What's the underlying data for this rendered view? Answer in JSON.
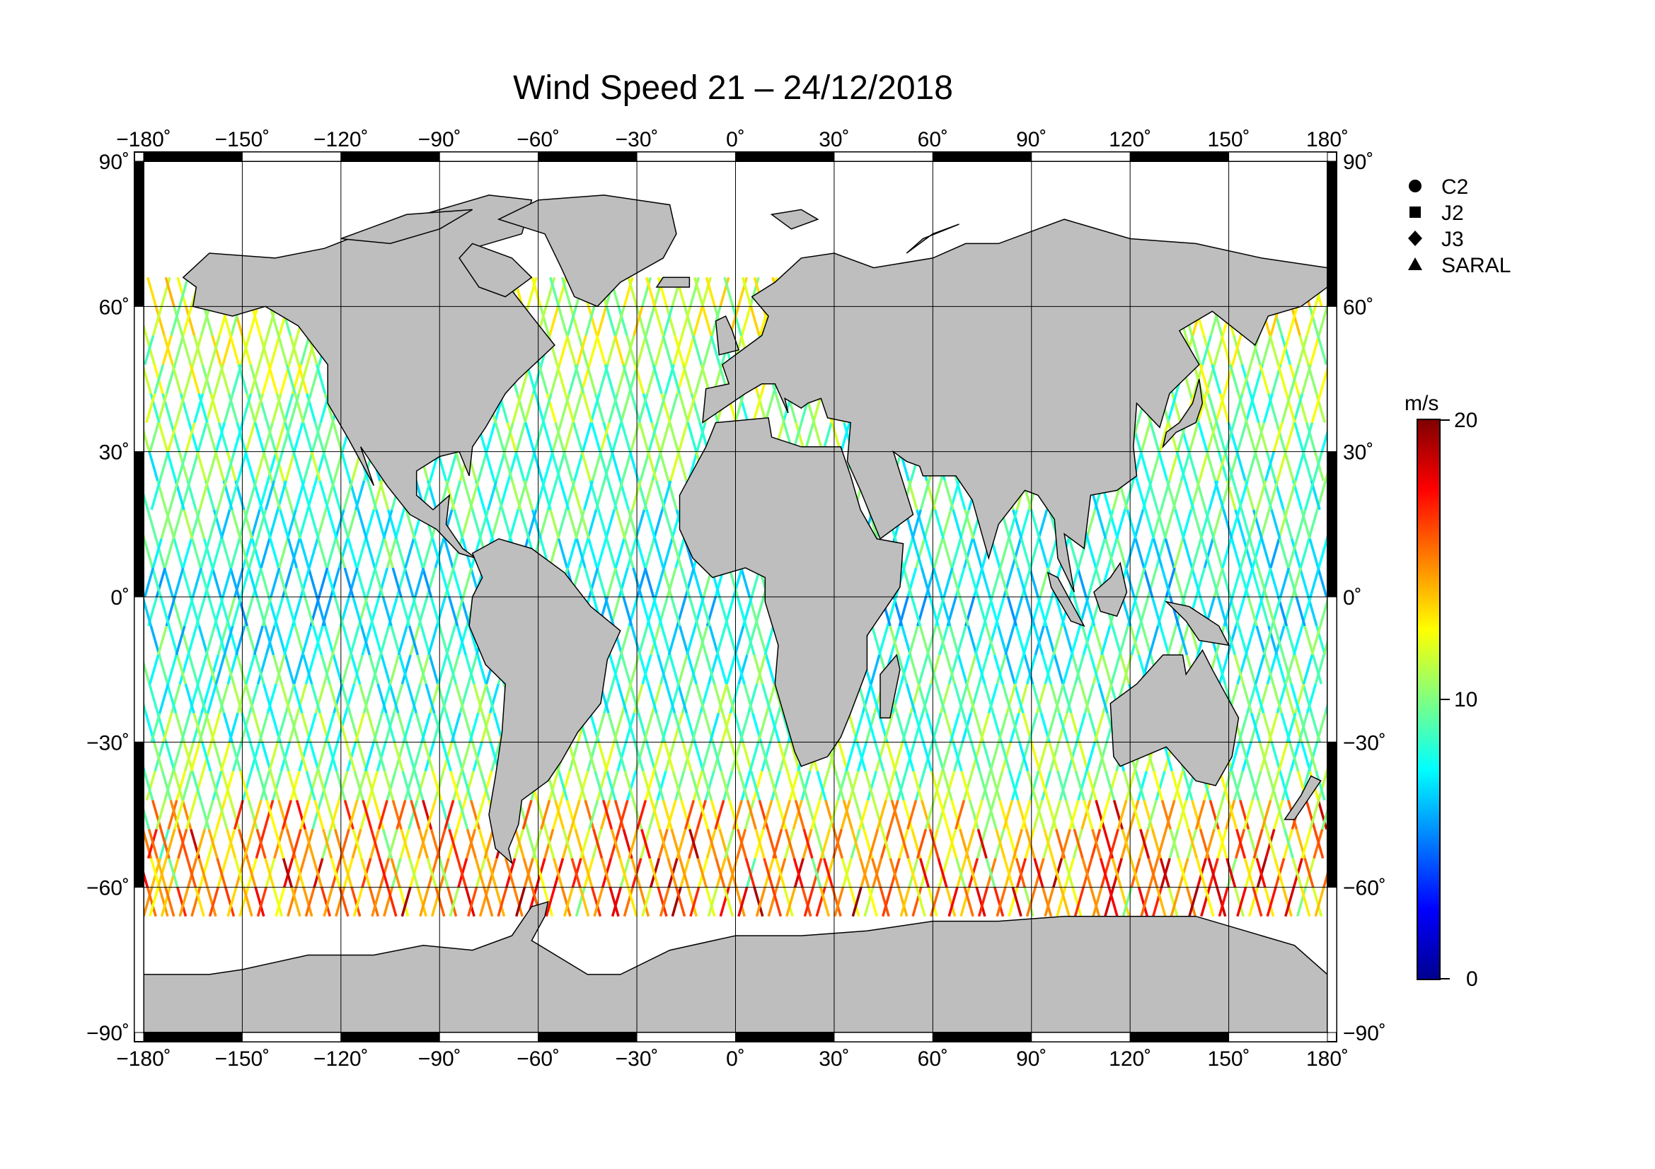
{
  "title": "Wind Speed 21 – 24/12/2018",
  "map": {
    "lon_range": [
      -180,
      180
    ],
    "lat_range": [
      -90,
      90
    ],
    "lon_ticks": [
      "−180˚",
      "−150˚",
      "−120˚",
      "−90˚",
      "−60˚",
      "−30˚",
      "0˚",
      "30˚",
      "60˚",
      "90˚",
      "120˚",
      "150˚",
      "180˚"
    ],
    "lat_ticks": [
      "90˚",
      "60˚",
      "30˚",
      "0˚",
      "−30˚",
      "−60˚",
      "−90˚"
    ],
    "grid": true,
    "land_color": "#bebebe",
    "ocean_color": "#ffffff"
  },
  "legend": {
    "items": [
      {
        "label": "C2",
        "symbol": "circle"
      },
      {
        "label": "J2",
        "symbol": "square"
      },
      {
        "label": "J3",
        "symbol": "diamond"
      },
      {
        "label": "SARAL",
        "symbol": "triangle"
      }
    ]
  },
  "colorbar": {
    "unit": "m/s",
    "min": 0,
    "max": 20,
    "tick_labels": [
      "20",
      "10",
      "0"
    ],
    "colors": [
      "#00008f",
      "#0000ff",
      "#0080ff",
      "#00ffff",
      "#80ff80",
      "#ffff00",
      "#ff8000",
      "#ff0000",
      "#800000"
    ]
  }
}
